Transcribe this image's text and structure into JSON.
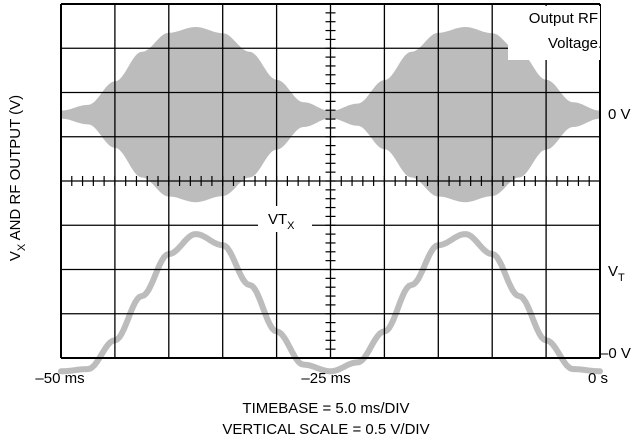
{
  "chart_data": {
    "type": "line",
    "title": "",
    "ylabel": {
      "main": "V",
      "sub": "X",
      "rest": " AND RF OUTPUT (V)"
    },
    "x_tick_labels": {
      "left": "–50 ms",
      "center": "–25 ms",
      "right": "0 s"
    },
    "xlim_ms": [
      -50,
      0
    ],
    "divisions": {
      "horizontal": 10,
      "vertical": 8
    },
    "timebase": "TIMEBASE = 5.0 ms/DIV",
    "vertical_scale": "VERTICAL SCALE = 0.5 V/DIV",
    "right_markers": {
      "zero": "0 V",
      "vt_main": "V",
      "vt_sub": "T",
      "neg": "–0 V"
    },
    "annotations": {
      "output_rf_line1": "Output RF",
      "output_rf_line2": "Voltage",
      "vtx_main": "VT",
      "vtx_sub": "X"
    },
    "series": [
      {
        "name": "",
        "kind": "rf_envelope",
        "color": "#bcbcbc",
        "x_ms": [
          -50,
          -47.5,
          -45,
          -42.5,
          -40,
          -37.5,
          -35,
          -32.5,
          -30,
          -27.5,
          -25,
          -22.5,
          -20,
          -17.5,
          -15,
          -12.5,
          -10,
          -7.5,
          -5,
          -2.5,
          0
        ],
        "amplitude_div": [
          0.09,
          0.22,
          0.75,
          1.42,
          1.85,
          1.98,
          1.84,
          1.42,
          0.79,
          0.28,
          0.08,
          0.25,
          0.78,
          1.42,
          1.85,
          1.98,
          1.84,
          1.42,
          0.79,
          0.28,
          0.09
        ]
      },
      {
        "name": "",
        "kind": "vtx",
        "color": "#bcbcbc",
        "x_ms": [
          -50,
          -47.5,
          -45,
          -42.5,
          -40,
          -37.5,
          -35,
          -32.5,
          -30,
          -27.5,
          -25,
          -22.5,
          -20,
          -17.5,
          -15,
          -12.5,
          -10,
          -7.5,
          -5,
          -2.5,
          0
        ],
        "y_div": [
          -3.3,
          -3.25,
          -2.6,
          -1.6,
          -0.65,
          -0.2,
          -0.45,
          -1.35,
          -2.4,
          -3.15,
          -3.3,
          -3.1,
          -2.4,
          -1.35,
          -0.45,
          -0.2,
          -0.65,
          -1.6,
          -2.6,
          -3.25,
          -3.3
        ]
      }
    ],
    "grid": true
  }
}
